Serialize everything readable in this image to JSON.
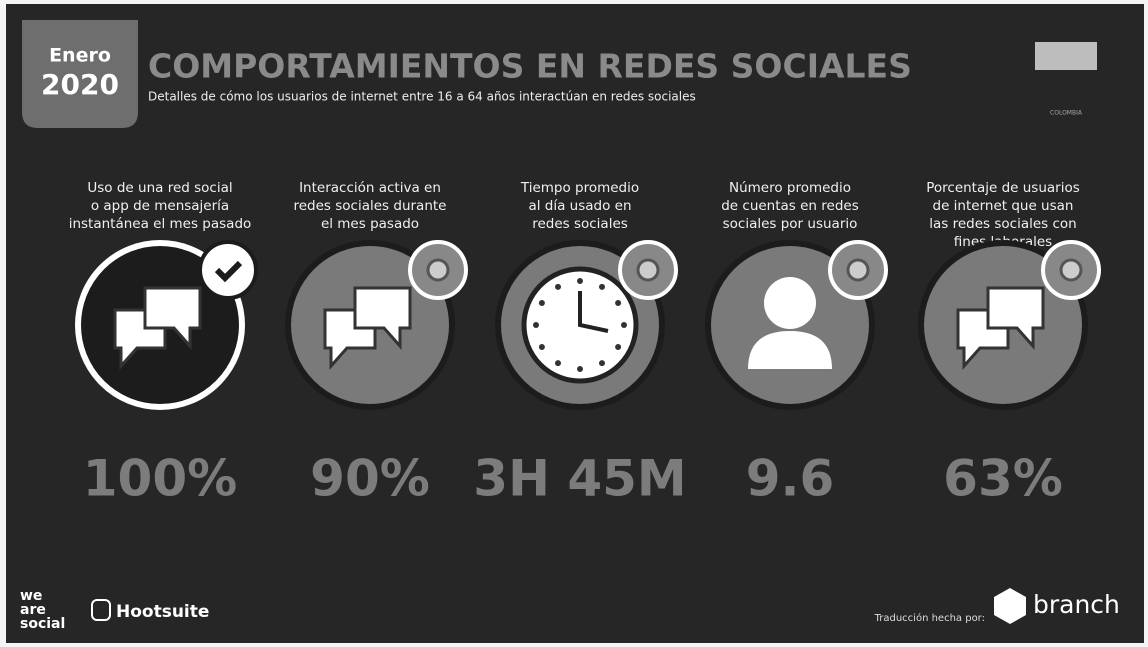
{
  "header": {
    "badge_month": "Enero",
    "badge_year": "2020",
    "title": "COMPORTAMIENTOS EN REDES SOCIALES",
    "subtitle": "Detalles de cómo los usuarios de internet entre 16 a 64 años interactúan en redes sociales",
    "country": "COLOMBIA"
  },
  "stats": [
    {
      "label": [
        "Uso de una red social",
        "o app de mensajería",
        "instantánea el mes pasado"
      ],
      "value": "100%"
    },
    {
      "label": [
        "Interacción activa en",
        "redes sociales durante",
        "el mes pasado"
      ],
      "value": "90%"
    },
    {
      "label": [
        "Tiempo promedio",
        "al día usado en",
        "redes sociales"
      ],
      "value": "3H 45M"
    },
    {
      "label": [
        "Número promedio",
        "de cuentas en redes",
        "sociales por usuario"
      ],
      "value": "9.6"
    },
    {
      "label": [
        "Porcentaje de usuarios",
        "de internet que usan",
        "las redes sociales con",
        "fines laborales"
      ],
      "value": "63%"
    }
  ],
  "footer": {
    "brand_left_lines": [
      "we",
      "are",
      "social"
    ],
    "brand_partner": "Hootsuite",
    "translation": "Traducción hecha por:",
    "brand_right": "branch"
  }
}
